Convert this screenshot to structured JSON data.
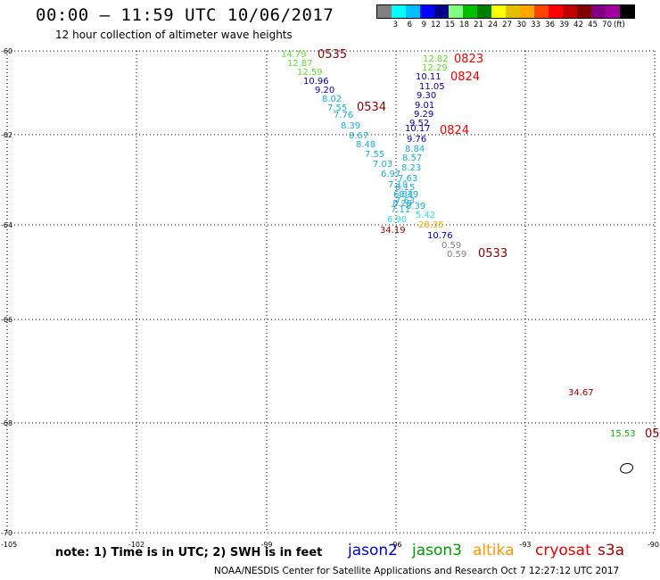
{
  "header": {
    "title": "00:00 – 11:59 UTC 10/06/2017",
    "subtitle": "12 hour collection of altimeter wave heights"
  },
  "legend": {
    "unit": "(ft)",
    "colors": [
      "#808080",
      "#00ffff",
      "#00bfff",
      "#0000ff",
      "#00008b",
      "#80ff80",
      "#00c000",
      "#008000",
      "#ffff00",
      "#e0c000",
      "#ffa500",
      "#ff4500",
      "#ff0000",
      "#c00000",
      "#800000",
      "#800080",
      "#a000a0",
      "#000000"
    ],
    "labels": [
      "3",
      "6",
      "9",
      "12",
      "15",
      "18",
      "21",
      "24",
      "27",
      "30",
      "33",
      "36",
      "39",
      "42",
      "45",
      "70"
    ]
  },
  "axes": {
    "lat_labels": [
      "-60",
      "-62",
      "-64",
      "-66",
      "-68",
      "-70"
    ],
    "lon_labels": [
      "-105",
      "-102",
      "-99",
      "-96",
      "-93",
      "-90"
    ]
  },
  "wave_heights": [
    {
      "t": "14.79",
      "c": "#66dd33"
    },
    {
      "t": "12.87",
      "c": "#66dd33"
    },
    {
      "t": "12.59",
      "c": "#66dd33"
    },
    {
      "t": "10.96",
      "c": "#0000aa"
    },
    {
      "t": "9.20",
      "c": "#0000aa"
    },
    {
      "t": "8.02",
      "c": "#1cadd8"
    },
    {
      "t": "7.55",
      "c": "#1cadd8"
    },
    {
      "t": "7.76",
      "c": "#1cadd8"
    },
    {
      "t": "8.39",
      "c": "#1cadd8"
    },
    {
      "t": "8.67",
      "c": "#1cadd8"
    },
    {
      "t": "8.48",
      "c": "#1cadd8"
    },
    {
      "t": "7.55",
      "c": "#1cadd8"
    },
    {
      "t": "7.03",
      "c": "#1cadd8"
    },
    {
      "t": "6.97",
      "c": "#1cadd8"
    },
    {
      "t": "7.10",
      "c": "#1cadd8"
    },
    {
      "t": "6.84",
      "c": "#1cadd8"
    },
    {
      "t": "7.63",
      "c": "#1cadd8"
    },
    {
      "t": "7.11",
      "c": "#1cadd8"
    },
    {
      "t": "6.90",
      "c": "#33ddee"
    },
    {
      "t": "34.19",
      "c": "#990000"
    },
    {
      "t": "12.82",
      "c": "#66dd33"
    },
    {
      "t": "12.29",
      "c": "#66dd33"
    },
    {
      "t": "10.11",
      "c": "#0000aa"
    },
    {
      "t": "11.05",
      "c": "#0000aa"
    },
    {
      "t": "9.30",
      "c": "#0000aa"
    },
    {
      "t": "9.01",
      "c": "#0000aa"
    },
    {
      "t": "9.29",
      "c": "#0000aa"
    },
    {
      "t": "9.52",
      "c": "#0000aa"
    },
    {
      "t": "10.17",
      "c": "#0000aa"
    },
    {
      "t": "9.76",
      "c": "#0000aa"
    },
    {
      "t": "8.84",
      "c": "#1cadd8"
    },
    {
      "t": "8.57",
      "c": "#1cadd8"
    },
    {
      "t": "8.23",
      "c": "#1cadd8"
    },
    {
      "t": "7.63",
      "c": "#1cadd8"
    },
    {
      "t": "8.15",
      "c": "#1cadd8"
    },
    {
      "t": "8.39",
      "c": "#1cadd8"
    },
    {
      "t": "8.29",
      "c": "#1cadd8"
    },
    {
      "t": "8.39",
      "c": "#1cadd8"
    },
    {
      "t": "5.42",
      "c": "#33ddee"
    },
    {
      "t": "28.35",
      "c": "#ffa500"
    },
    {
      "t": "10.76",
      "c": "#0000aa"
    },
    {
      "t": "0.59",
      "c": "#808080"
    },
    {
      "t": "0.59",
      "c": "#808080"
    },
    {
      "t": "34.67",
      "c": "#990000"
    },
    {
      "t": "15.53",
      "c": "#11aa11"
    }
  ],
  "pass_times": [
    {
      "t": "0535",
      "c": "#800000"
    },
    {
      "t": "0534",
      "c": "#800000"
    },
    {
      "t": "0823",
      "c": "#ee0000"
    },
    {
      "t": "0824",
      "c": "#ee0000"
    },
    {
      "t": "0824",
      "c": "#ee0000"
    },
    {
      "t": "0533",
      "c": "#800000"
    },
    {
      "t": "05",
      "c": "#800000"
    }
  ],
  "note": "note: 1) Time is in UTC; 2) SWH is in feet",
  "satellites": [
    {
      "name": "jason2",
      "color": "#0000cc"
    },
    {
      "name": "jason3",
      "color": "#009900"
    },
    {
      "name": "altika",
      "color": "#ff9900"
    },
    {
      "name": "cryosat",
      "color": "#dd0000"
    },
    {
      "name": "s3a",
      "color": "#990000"
    }
  ],
  "footer": "NOAA/NESDIS Center for Satellite Applications and Research    Oct  7 12:27:12 UTC 2017"
}
